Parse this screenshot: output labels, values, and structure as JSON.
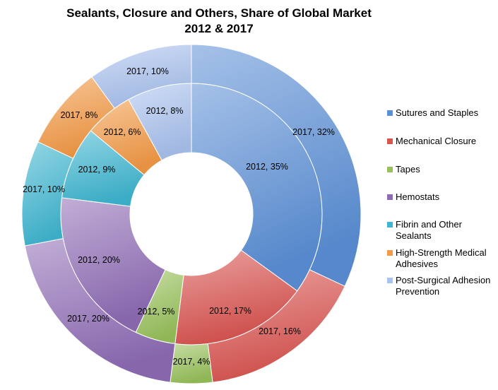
{
  "chart_data": {
    "type": "donut",
    "title_lines": [
      "Sealants, Closure and Others, Share of Global Market",
      "2012 & 2017"
    ],
    "categories": [
      "Sutures and Staples",
      "Mechanical Closure",
      "Tapes",
      "Hemostats",
      "Fibrin and Other Sealants",
      "High-Strength Medical Adhesives",
      "Post-Surgical Adhesion Prevention"
    ],
    "legend_lines": [
      [
        "Sutures and Staples"
      ],
      [
        "Mechanical Closure"
      ],
      [
        "Tapes"
      ],
      [
        "Hemostats"
      ],
      [
        "Fibrin and Other",
        "Sealants"
      ],
      [
        "High-Strength Medical",
        "Adhesives"
      ],
      [
        "Post-Surgical Adhesion",
        "Prevention"
      ]
    ],
    "colors": [
      "#5b8fd6",
      "#d9534f",
      "#98c15a",
      "#8e6bb5",
      "#3fb6d0",
      "#f39a45",
      "#a9c2ee"
    ],
    "series": [
      {
        "name": "2012",
        "ring": "inner",
        "values": [
          35,
          17,
          5,
          20,
          9,
          6,
          8
        ],
        "labels": [
          "2012, 35%",
          "2012, 17%",
          "2012, 5%",
          "2012, 20%",
          "2012, 9%",
          "2012, 6%",
          "2012, 8%"
        ]
      },
      {
        "name": "2017",
        "ring": "outer",
        "values": [
          32,
          16,
          4,
          20,
          10,
          8,
          10
        ],
        "labels": [
          "2017, 32%",
          "2017, 16%",
          "2017, 4%",
          "2017, 20%",
          "2017, 10%",
          "2017, 8%",
          "2017, 10%"
        ]
      }
    ],
    "legend_position": "right"
  }
}
